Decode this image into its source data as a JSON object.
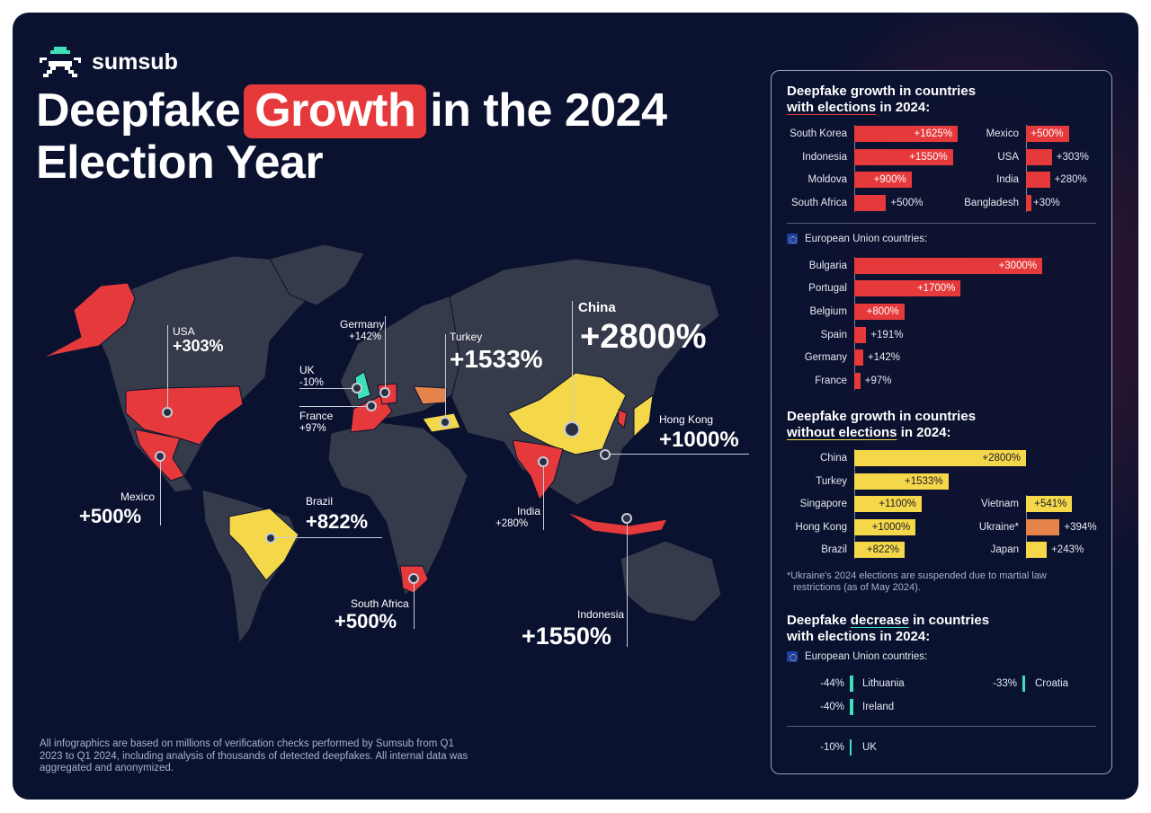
{
  "brand": {
    "name": "sumsub",
    "icon": "alien-pixel-logo-icon"
  },
  "title": {
    "before": "Deepfake",
    "highlight": "Growth",
    "after": "in the 2024",
    "line2": "Election Year"
  },
  "footnote": "All infographics are based on millions of verification checks performed by Sumsub from Q1 2023 to Q1 2024, including analysis of thousands of detected deepfakes. All internal data was aggregated and anonymized.",
  "colors": {
    "background": "#0a1230",
    "with_elections": "#e5393b",
    "without_elections": "#f5d84a",
    "ukraine": "#e5844a",
    "decrease": "#3fe0b8",
    "land": "#363b4b"
  },
  "map": {
    "callouts": [
      {
        "country": "USA",
        "value": "+303%"
      },
      {
        "country": "Germany",
        "value": "+142%"
      },
      {
        "country": "UK",
        "value": "-10%"
      },
      {
        "country": "France",
        "value": "+97%"
      },
      {
        "country": "Turkey",
        "value": "+1533%"
      },
      {
        "country": "China",
        "value": "+2800%"
      },
      {
        "country": "Hong Kong",
        "value": "+1000%"
      },
      {
        "country": "Mexico",
        "value": "+500%"
      },
      {
        "country": "Brazil",
        "value": "+822%"
      },
      {
        "country": "India",
        "value": "+280%"
      },
      {
        "country": "South Africa",
        "value": "+500%"
      },
      {
        "country": "Indonesia",
        "value": "+1550%"
      }
    ]
  },
  "chart_data": [
    {
      "type": "bar",
      "title": "Deepfake growth in countries with elections in 2024:",
      "title_parts": [
        "Deepfake growth in countries",
        "with elections",
        "in 2024:"
      ],
      "series": [
        {
          "column": "left",
          "categories": [
            "South Korea",
            "Indonesia",
            "Moldova",
            "South Africa"
          ],
          "values": [
            1625,
            1550,
            900,
            500
          ],
          "labels": [
            "+1625%",
            "+1550%",
            "+900%",
            "+500%"
          ]
        },
        {
          "column": "right",
          "categories": [
            "Mexico",
            "USA",
            "India",
            "Bangladesh"
          ],
          "values": [
            500,
            303,
            280,
            30
          ],
          "labels": [
            "+500%",
            "+303%",
            "+280%",
            "+30%"
          ]
        }
      ]
    },
    {
      "type": "bar",
      "title": "European Union countries:",
      "categories": [
        "Bulgaria",
        "Portugal",
        "Belgium",
        "Spain",
        "Germany",
        "France"
      ],
      "values": [
        3000,
        1700,
        800,
        191,
        142,
        97
      ],
      "labels": [
        "+3000%",
        "+1700%",
        "+800%",
        "+191%",
        "+142%",
        "+97%"
      ]
    },
    {
      "type": "bar",
      "title": "Deepfake growth in countries without elections in 2024:",
      "title_parts": [
        "Deepfake growth in countries",
        "without elections",
        "in 2024:"
      ],
      "series": [
        {
          "column": "left",
          "categories": [
            "China",
            "Turkey",
            "Singapore",
            "Hong Kong",
            "Brazil"
          ],
          "values": [
            2800,
            1533,
            1100,
            1000,
            822
          ],
          "labels": [
            "+2800%",
            "+1533%",
            "+1100%",
            "+1000%",
            "+822%"
          ]
        },
        {
          "column": "right",
          "categories": [
            "Vietnam",
            "Ukraine*",
            "Japan"
          ],
          "values": [
            541,
            394,
            243
          ],
          "labels": [
            "+541%",
            "+394%",
            "+243%"
          ]
        }
      ],
      "footnote": "*Ukraine's 2024 elections are suspended due to martial law restrictions (as of May 2024)."
    },
    {
      "type": "bar",
      "title": "Deepfake decrease in countries with elections in 2024:",
      "title_parts": [
        "Deepfake",
        "decrease",
        "in countries",
        "with elections in 2024:"
      ],
      "subtitle": "European Union countries:",
      "eu": [
        {
          "category": "Lithuania",
          "value": -44,
          "label": "-44%"
        },
        {
          "category": "Croatia",
          "value": -33,
          "label": "-33%"
        },
        {
          "category": "Ireland",
          "value": -40,
          "label": "-40%"
        }
      ],
      "other": [
        {
          "category": "UK",
          "value": -10,
          "label": "-10%"
        }
      ]
    }
  ]
}
